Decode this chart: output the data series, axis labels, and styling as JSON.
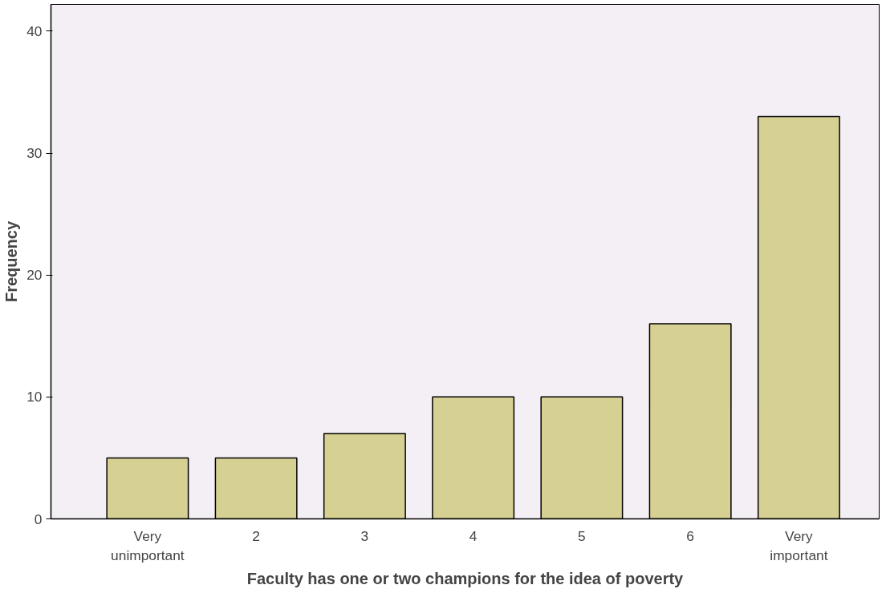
{
  "chart_data": {
    "type": "bar",
    "xlabel": "Faculty has one or two champions for the idea of poverty",
    "ylabel": "Frequency",
    "categories": [
      "Very\nunimportant",
      "2",
      "3",
      "4",
      "5",
      "6",
      "Very\nimportant"
    ],
    "values": [
      5,
      5,
      7,
      10,
      10,
      16,
      33
    ],
    "color": "#d6d093",
    "ylim": [
      0,
      42.2
    ],
    "yticks": [
      0,
      10,
      20,
      30,
      40
    ],
    "grid": false
  }
}
